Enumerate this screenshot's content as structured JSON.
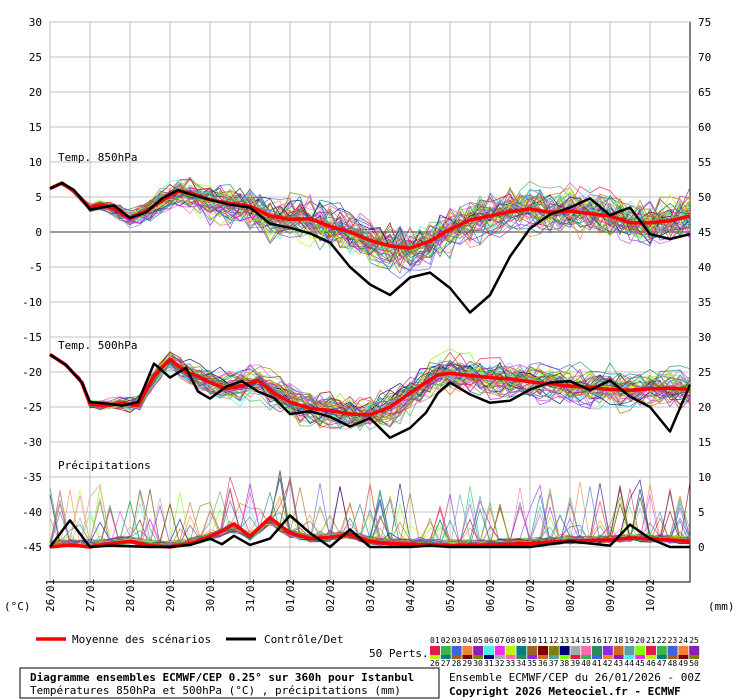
{
  "chart_data": {
    "type": "line",
    "title": "Diagramme ensembles ECMWF/CEP 0.25° sur 360h pour Istanbul",
    "subtitle": "Températures 850hPa et 500hPa (°C) , précipitations (mm)",
    "left_axis": {
      "unit": "(°C)",
      "ylim": [
        -45,
        30
      ],
      "ticks": [
        30,
        25,
        20,
        15,
        10,
        5,
        0,
        -5,
        -10,
        -15,
        -20,
        -25,
        -30,
        -35,
        -40,
        -45
      ]
    },
    "right_axis": {
      "unit": "(mm)",
      "ticks": [
        75,
        70,
        65,
        60,
        55,
        50,
        45,
        40,
        35,
        30,
        25,
        20,
        15,
        10,
        5,
        0
      ]
    },
    "x_dates": [
      "26/01",
      "27/01",
      "28/01",
      "29/01",
      "30/01",
      "31/01",
      "01/02",
      "02/02",
      "03/02",
      "04/02",
      "05/02",
      "06/02",
      "07/02",
      "08/02",
      "09/02",
      "10/02"
    ],
    "panel_labels": {
      "t850": "Temp. 850hPa",
      "t500": "Temp. 500hPa",
      "precip": "Précipitations"
    },
    "legend": {
      "mean": "Moyenne des scénarios",
      "control": "Contrôle/Det",
      "perts": "50 Perts."
    },
    "pert_ids_top": [
      "01",
      "02",
      "03",
      "04",
      "05",
      "06",
      "07",
      "08",
      "09",
      "10",
      "11",
      "12",
      "13",
      "14",
      "15",
      "16",
      "17",
      "18",
      "19",
      "20",
      "21",
      "22",
      "23",
      "24",
      "25"
    ],
    "pert_ids_bottom": [
      "26",
      "27",
      "28",
      "29",
      "30",
      "31",
      "32",
      "33",
      "34",
      "35",
      "36",
      "37",
      "38",
      "39",
      "40",
      "41",
      "42",
      "43",
      "44",
      "45",
      "46",
      "47",
      "48",
      "49",
      "50"
    ],
    "series": [
      {
        "name": "Moyenne des scénarios",
        "panel": "t850",
        "color": "#ff0000",
        "x": [
          0,
          0.3,
          0.6,
          1,
          1.3,
          1.6,
          2,
          2.4,
          2.8,
          3.2,
          3.5,
          4,
          4.5,
          5,
          5.5,
          6,
          6.5,
          7,
          7.5,
          8,
          8.5,
          9,
          9.5,
          10,
          10.5,
          11,
          11.5,
          12,
          12.5,
          13,
          13.5,
          14,
          14.5,
          15,
          15.5,
          16
        ],
        "values": [
          6.2,
          7,
          5.8,
          3.5,
          3.9,
          3.3,
          2,
          3,
          4.5,
          5.8,
          5.6,
          4.6,
          4.1,
          3.7,
          2.3,
          1.8,
          1.9,
          0.8,
          0,
          -1.2,
          -2,
          -2.3,
          -1.3,
          0.4,
          1.7,
          2.3,
          2.9,
          3.3,
          2.8,
          3,
          2.6,
          2.3,
          1.3,
          1.3,
          1.6,
          2.3
        ]
      },
      {
        "name": "Contrôle/Det",
        "panel": "t850",
        "color": "#000000",
        "x": [
          0,
          0.3,
          0.6,
          1,
          1.3,
          1.6,
          2,
          2.4,
          2.8,
          3.2,
          3.5,
          4,
          4.5,
          5,
          5.5,
          6,
          6.5,
          7,
          7.5,
          8,
          8.5,
          9,
          9.5,
          10,
          10.5,
          11,
          11.5,
          12,
          12.5,
          13,
          13.5,
          14,
          14.5,
          15,
          15.5,
          16
        ],
        "values": [
          6.2,
          7,
          6,
          3.2,
          3.5,
          3.8,
          2,
          2.8,
          4.8,
          6,
          5.4,
          4.6,
          3.9,
          3.5,
          1.2,
          0.6,
          -0.2,
          -1.5,
          -5,
          -7.5,
          -9,
          -6.5,
          -5.8,
          -8,
          -11.5,
          -9,
          -3.5,
          0.5,
          2.5,
          3.5,
          4.8,
          2.4,
          3.5,
          -0.3,
          -1,
          -0.3
        ]
      },
      {
        "name": "Moyenne des scénarios",
        "panel": "t500",
        "color": "#ff0000",
        "x": [
          0,
          0.4,
          0.8,
          1,
          1.4,
          1.8,
          2.2,
          2.6,
          3,
          3.4,
          3.7,
          4,
          4.4,
          4.8,
          5.2,
          5.6,
          6,
          6.5,
          7,
          7.5,
          8,
          8.5,
          9,
          9.4,
          9.7,
          10,
          10.5,
          11,
          11.5,
          12,
          12.5,
          13,
          13.5,
          14,
          14.5,
          15,
          15.5,
          16
        ],
        "values": [
          -17.5,
          -19,
          -21.5,
          -24.6,
          -24.8,
          -24.5,
          -24.8,
          -20.5,
          -18.2,
          -20,
          -20.6,
          -21.5,
          -22.4,
          -22,
          -21.2,
          -23,
          -24.3,
          -25.2,
          -25.5,
          -26,
          -26.1,
          -25,
          -23,
          -21.5,
          -20.4,
          -20.2,
          -20.5,
          -20.8,
          -21,
          -21.4,
          -21.7,
          -22,
          -22.2,
          -22.5,
          -22.6,
          -22.4,
          -22.3,
          -22.5
        ]
      },
      {
        "name": "Contrôle/Det",
        "panel": "t500",
        "color": "#000000",
        "x": [
          0,
          0.4,
          0.8,
          1,
          1.4,
          1.8,
          2.2,
          2.6,
          3,
          3.4,
          3.7,
          4,
          4.4,
          4.8,
          5.2,
          5.6,
          6,
          6.5,
          7,
          7.5,
          8,
          8.5,
          9,
          9.4,
          9.7,
          10,
          10.5,
          11,
          11.5,
          12,
          12.5,
          13,
          13.5,
          14,
          14.5,
          15,
          15.5,
          16
        ],
        "values": [
          -17.5,
          -19,
          -21.5,
          -24.3,
          -24.5,
          -24.8,
          -24.3,
          -18.8,
          -20.8,
          -19.4,
          -22.8,
          -23.8,
          -22.1,
          -21.3,
          -22.8,
          -23.7,
          -26,
          -25.6,
          -26.4,
          -27.8,
          -26.6,
          -29.4,
          -28,
          -25.8,
          -23,
          -21.5,
          -23.2,
          -24.4,
          -24.1,
          -22.5,
          -21.5,
          -21.3,
          -22.6,
          -21.2,
          -23.5,
          -25,
          -28.5,
          -21.8
        ]
      },
      {
        "name": "Moyenne des scénarios",
        "panel": "precip",
        "color": "#ff0000",
        "x": [
          0,
          0.5,
          1,
          1.5,
          2,
          2.5,
          3,
          3.5,
          4,
          4.3,
          4.6,
          5,
          5.5,
          6,
          6.5,
          7,
          7.5,
          8,
          8.5,
          9,
          9.5,
          10,
          11,
          12,
          13,
          14,
          14.5,
          15,
          15.5,
          16
        ],
        "values": [
          0,
          0.3,
          0,
          0.5,
          0.8,
          0.2,
          0,
          0.5,
          1.5,
          2.3,
          3.3,
          1.5,
          4.2,
          2,
          1.2,
          1.4,
          1.8,
          0.8,
          0.5,
          0.4,
          0.3,
          0.2,
          0.3,
          0.5,
          0.9,
          1,
          1.3,
          1.2,
          1,
          0.8
        ]
      },
      {
        "name": "Contrôle/Det",
        "panel": "precip",
        "color": "#000000",
        "x": [
          0,
          0.5,
          1,
          1.5,
          2,
          2.5,
          3,
          3.5,
          4,
          4.3,
          4.6,
          5,
          5.5,
          6,
          6.5,
          7,
          7.5,
          8,
          8.5,
          9,
          9.5,
          10,
          11,
          12,
          13,
          14,
          14.5,
          15,
          15.5,
          16
        ],
        "values": [
          0,
          3.8,
          0,
          0.2,
          0.1,
          0,
          0,
          0.3,
          1.2,
          0.4,
          1.6,
          0.3,
          1.2,
          4.5,
          2,
          0,
          2.5,
          0,
          0,
          0,
          0.2,
          0,
          0,
          0,
          0.8,
          0.2,
          3.2,
          1.2,
          0,
          0
        ]
      }
    ]
  },
  "footer": {
    "title_line1": "Diagramme ensembles ECMWF/CEP 0.25° sur 360h pour Istanbul",
    "title_line2": "Températures 850hPa et 500hPa (°C) , précipitations (mm)",
    "run": "Ensemble ECMWF/CEP du 26/01/2026 - 00Z",
    "copyright": "Copyright 2026 Meteociel.fr - ECMWF"
  },
  "colors": {
    "mean": "#ff0000",
    "control": "#000000",
    "grid": "#c0c0c0",
    "zero_line": "#999999"
  }
}
